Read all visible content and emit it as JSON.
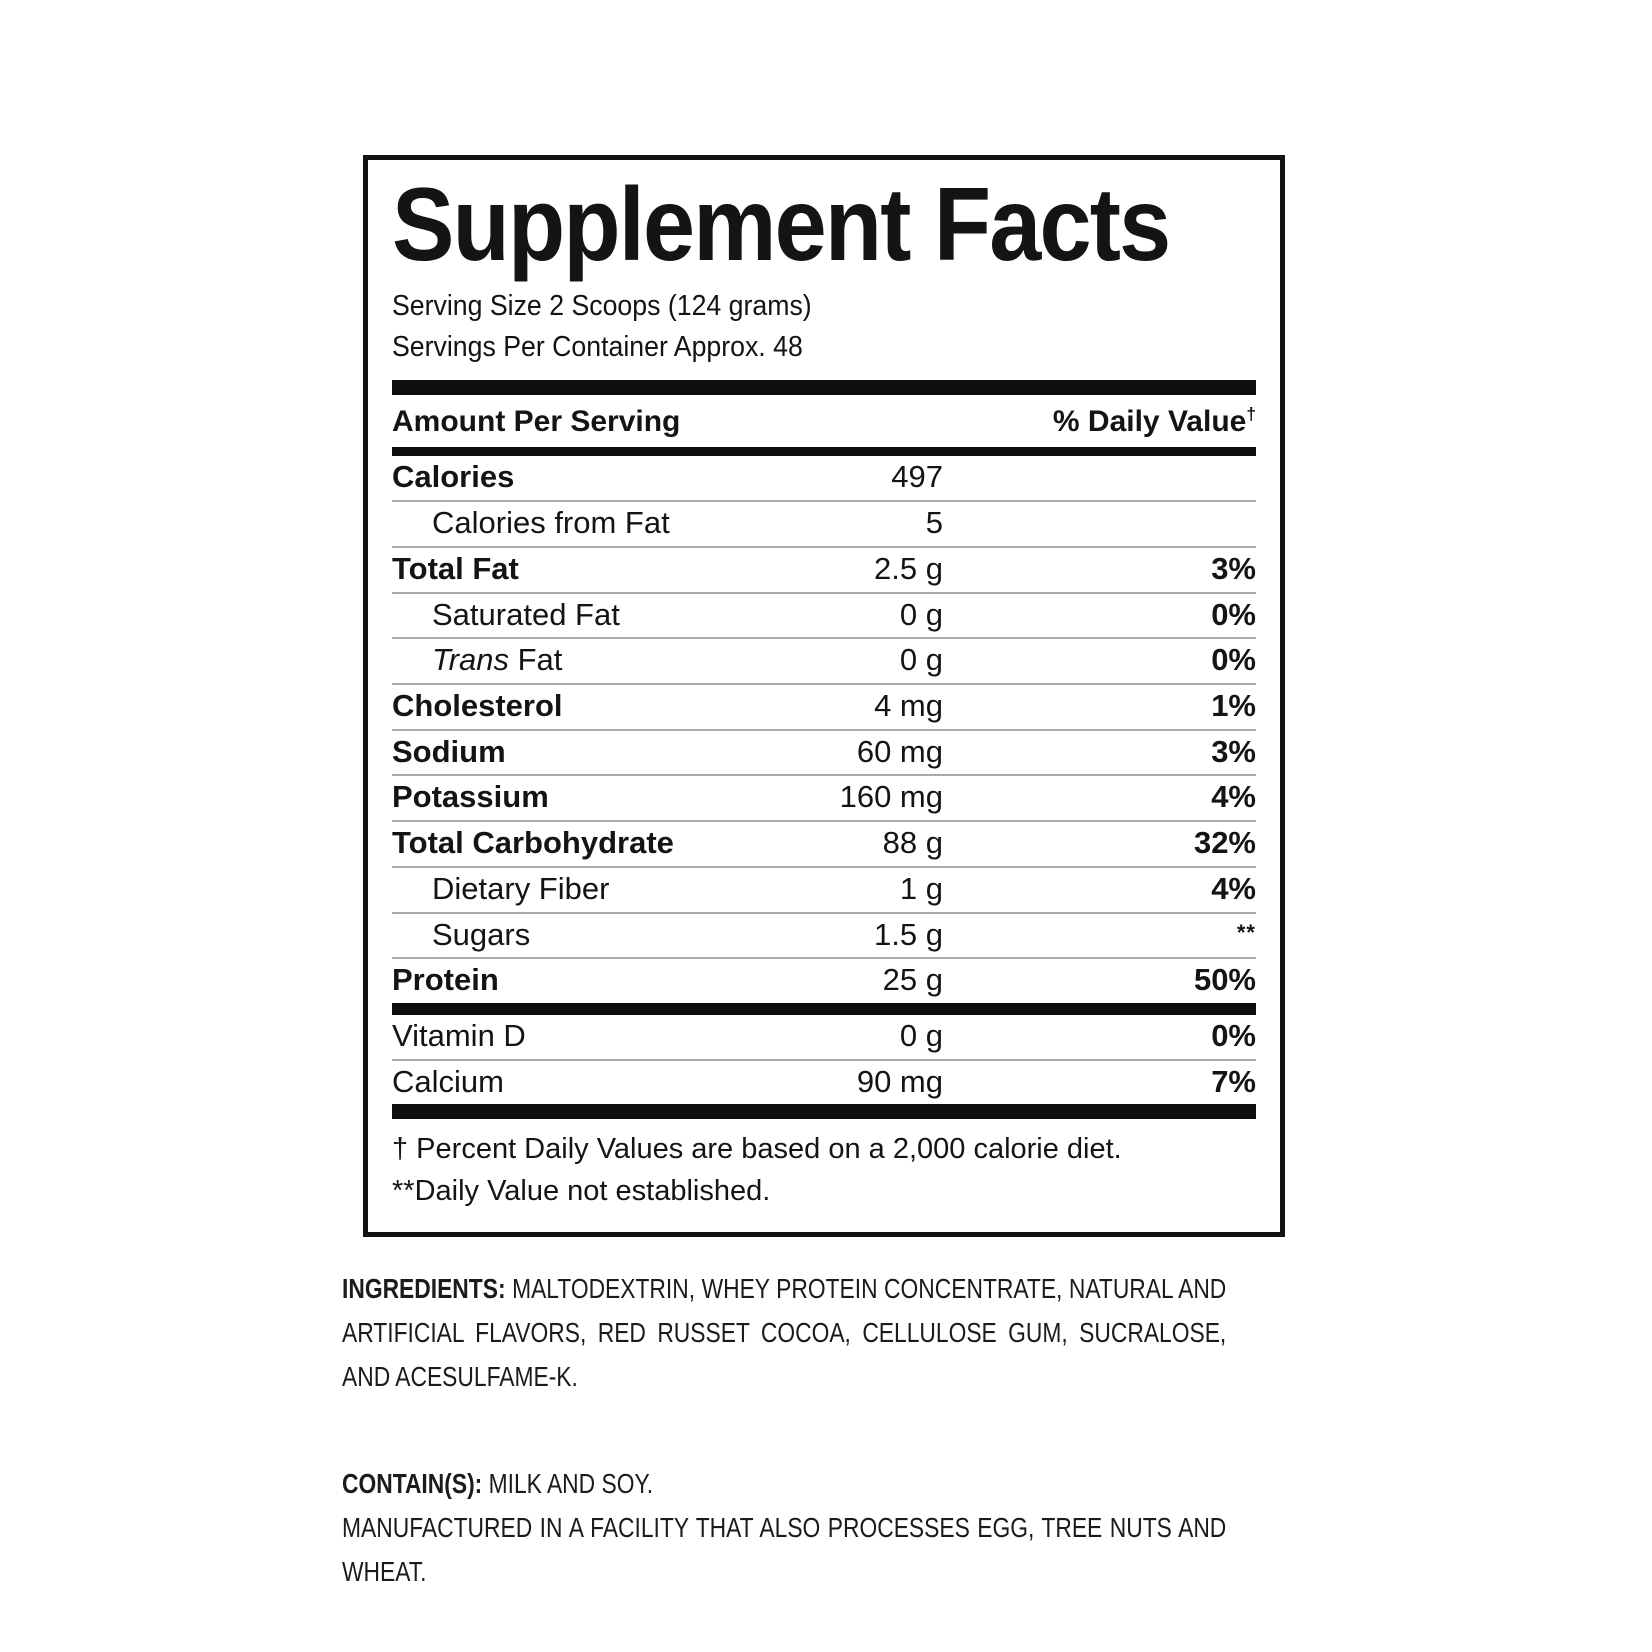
{
  "colors": {
    "text": "#141414",
    "bar": "#0e0e0e",
    "separator": "#a9a9a9",
    "background": "#ffffff"
  },
  "label": {
    "title": "Supplement Facts",
    "serving_size": "Serving Size 2 Scoops (124 grams)",
    "servings_per_container": "Servings Per Container Approx. 48",
    "header": {
      "left": "Amount Per Serving",
      "right": "% Daily Value",
      "dagger": "†"
    },
    "rows": [
      {
        "name": "Calories",
        "amount": "497",
        "dv": "",
        "bold": true
      },
      {
        "name": "Calories from Fat",
        "amount": "5",
        "dv": "",
        "indent": true
      },
      {
        "name": "Total Fat",
        "amount": "2.5 g",
        "dv": "3%",
        "bold": true
      },
      {
        "name": "Saturated Fat",
        "amount": "0 g",
        "dv": "0%",
        "indent": true
      },
      {
        "name": "Trans Fat",
        "italic_prefix": "Trans",
        "amount": "0 g",
        "dv": "0%",
        "indent": true
      },
      {
        "name": "Cholesterol",
        "amount": "4 mg",
        "dv": "1%",
        "bold": true
      },
      {
        "name": "Sodium",
        "amount": "60 mg",
        "dv": "3%",
        "bold": true
      },
      {
        "name": "Potassium",
        "amount": "160 mg",
        "dv": "4%",
        "bold": true
      },
      {
        "name": "Total Carbohydrate",
        "amount": "88 g",
        "dv": "32%",
        "bold": true
      },
      {
        "name": "Dietary Fiber",
        "amount": "1 g",
        "dv": "4%",
        "indent": true
      },
      {
        "name": "Sugars",
        "amount": "1.5 g",
        "dv": "**",
        "dv_small": true,
        "indent": true
      },
      {
        "name": "Protein",
        "amount": "25 g",
        "dv": "50%",
        "bold": true
      }
    ],
    "vitamin_rows": [
      {
        "name": "Vitamin D",
        "amount": "0 g",
        "dv": "0%"
      },
      {
        "name": "Calcium",
        "amount": "90 mg",
        "dv": "7%"
      }
    ],
    "footnote1": "† Percent Daily Values are based on a 2,000 calorie diet.",
    "footnote2": "**Daily Value not established."
  },
  "ingredients": {
    "lead": "INGREDIENTS:",
    "body": "MALTODEXTRIN, WHEY PROTEIN CONCENTRATE, NATURAL AND ARTIFICIAL FLAVORS, RED RUSSET COCOA, CELLULOSE GUM, SUCRALOSE, AND ACESULFAME-K."
  },
  "contains": {
    "lead": "CONTAIN(S):",
    "body": "MILK AND SOY.",
    "manufactured": "MANUFACTURED IN A FACILITY THAT ALSO PROCESSES EGG, TREE NUTS AND WHEAT."
  }
}
